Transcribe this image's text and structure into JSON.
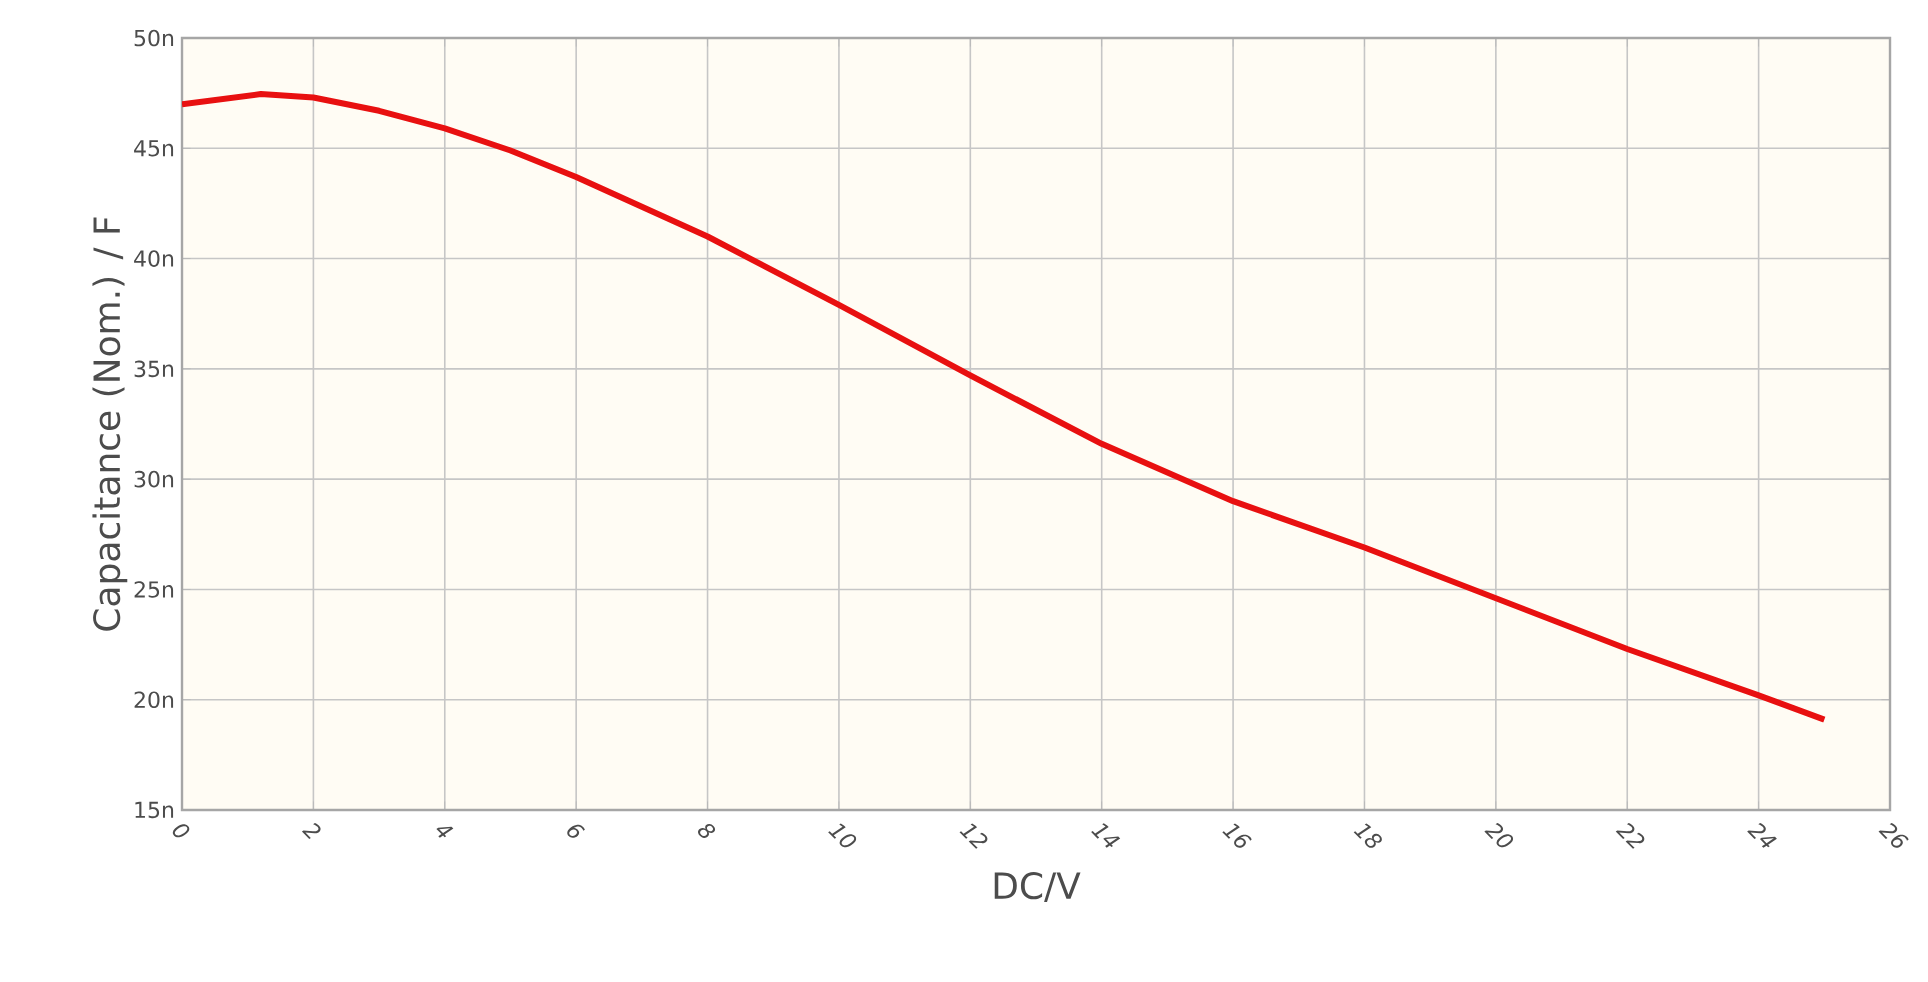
{
  "chart_data": {
    "type": "line",
    "xlabel": "DC/V",
    "ylabel": "Capacitance (Nom.) / F",
    "x": [
      0,
      1.2,
      2,
      3,
      4,
      5,
      6,
      8,
      10,
      12,
      14,
      16,
      18,
      20,
      22,
      24,
      25
    ],
    "values": [
      47.0,
      47.46,
      47.3,
      46.7,
      45.9,
      44.9,
      43.7,
      41.0,
      37.9,
      34.7,
      31.6,
      29.0,
      26.9,
      24.6,
      22.3,
      20.2,
      19.1
    ],
    "color": "#e81010",
    "line_style": "solid",
    "grid": true,
    "xlim": [
      0,
      26
    ],
    "ylim": [
      15,
      50
    ],
    "xticks": [
      0,
      2,
      4,
      6,
      8,
      10,
      12,
      14,
      16,
      18,
      20,
      22,
      24,
      26
    ],
    "yticks": [
      {
        "value": 15,
        "label": "15n"
      },
      {
        "value": 20,
        "label": "20n"
      },
      {
        "value": 25,
        "label": "25n"
      },
      {
        "value": 30,
        "label": "30n"
      },
      {
        "value": 35,
        "label": "35n"
      },
      {
        "value": 40,
        "label": "40n"
      },
      {
        "value": 45,
        "label": "45n"
      },
      {
        "value": 50,
        "label": "50n"
      }
    ]
  }
}
